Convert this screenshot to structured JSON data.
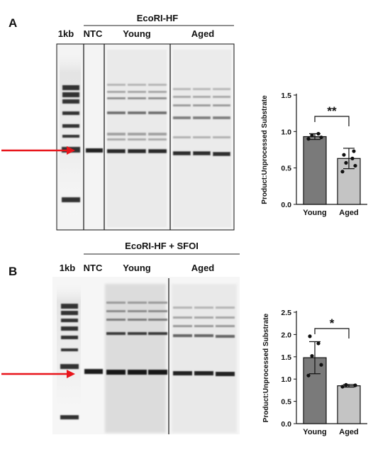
{
  "panels": {
    "a": {
      "letter": "A",
      "enzyme_label": "EcoRI-HF",
      "lane_labels": {
        "ladder": "1kb",
        "ntc": "NTC",
        "young": "Young",
        "aged": "Aged"
      }
    },
    "b": {
      "letter": "B",
      "enzyme_label": "EcoRI-HF + SFOI",
      "lane_labels": {
        "ladder": "1kb",
        "ntc": "NTC",
        "young": "Young",
        "aged": "Aged"
      }
    }
  },
  "colors": {
    "young_bar": "#7a7a7a",
    "aged_bar": "#c4c4c4",
    "arrow": "#e8151b",
    "gel_background": "#f4f4f4",
    "gel_band": "#1c1c1c"
  },
  "chart_data": [
    {
      "type": "bar",
      "panel": "A",
      "title": "",
      "xlabel": "",
      "ylabel": "Product:Unprocessed Substrate",
      "categories": [
        "Young",
        "Aged"
      ],
      "values": [
        0.93,
        0.63
      ],
      "error": [
        0.04,
        0.14
      ],
      "points": [
        [
          0.9,
          0.92,
          0.95,
          0.97
        ],
        [
          0.45,
          0.53,
          0.57,
          0.63,
          0.68,
          0.73
        ]
      ],
      "yticks": [
        "0.0",
        "0.5",
        "1.0",
        "1.5"
      ],
      "ylim": [
        0,
        1.5
      ],
      "significance": "**",
      "grid": false
    },
    {
      "type": "bar",
      "panel": "B",
      "title": "",
      "xlabel": "",
      "ylabel": "Product:Unprocessed Substrate",
      "categories": [
        "Young",
        "Aged"
      ],
      "values": [
        1.48,
        0.85
      ],
      "error": [
        0.36,
        0.03
      ],
      "points": [
        [
          1.08,
          1.32,
          1.52,
          1.8,
          1.96
        ],
        [
          0.83,
          0.86,
          0.87
        ]
      ],
      "yticks": [
        "0.0",
        "0.5",
        "1.0",
        "1.5",
        "2.0",
        "2.5"
      ],
      "ylim": [
        0,
        2.5
      ],
      "significance": "*",
      "grid": false
    }
  ]
}
